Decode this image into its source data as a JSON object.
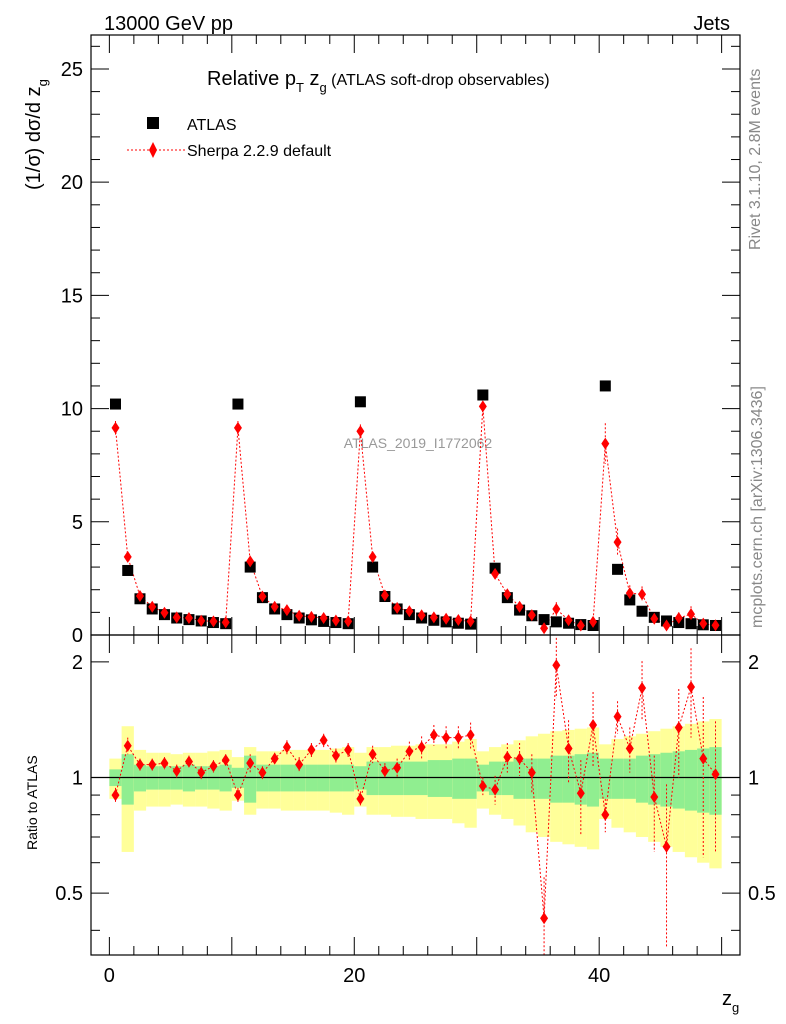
{
  "header": {
    "left": "13000 GeV pp",
    "right": "Jets"
  },
  "side_labels": {
    "rivet": "Rivet 3.1.10,  2.8M events",
    "mcplots": "mcplots.cern.ch [arXiv:1306.3436]"
  },
  "chart_data": [
    {
      "type": "scatter",
      "title": "Relative p_T z_g (ATLAS soft-drop observables)",
      "title_main": "Relative p",
      "title_sub_T": "T",
      "title_z": " z",
      "title_sub_g": "g",
      "title_rest": " (ATLAS soft-drop observables)",
      "ylabel": "(1/σ) dσ/d z_g",
      "ylabel_main": "(1/σ) dσ/d z",
      "ylabel_sub": "g",
      "watermark": "ATLAS_2019_I1772062",
      "xlim": [
        -1.5,
        51.5
      ],
      "ylim": [
        0,
        26.5
      ],
      "y_ticks": [
        0,
        5,
        10,
        15,
        20,
        25
      ],
      "y_tick_labels": [
        "0",
        "5",
        "10",
        "15",
        "20",
        "25"
      ],
      "legend_position": "top-left",
      "series": [
        {
          "name": "ATLAS",
          "color": "#000000",
          "marker": "square",
          "x": [
            0.5,
            1.5,
            2.5,
            3.5,
            4.5,
            5.5,
            6.5,
            7.5,
            8.5,
            9.5,
            10.5,
            11.5,
            12.5,
            13.5,
            14.5,
            15.5,
            16.5,
            17.5,
            18.5,
            19.5,
            20.5,
            21.5,
            22.5,
            23.5,
            24.5,
            25.5,
            26.5,
            27.5,
            28.5,
            29.5,
            30.5,
            31.5,
            32.5,
            33.5,
            34.5,
            35.5,
            36.5,
            37.5,
            38.5,
            39.5,
            40.5,
            41.5,
            42.5,
            43.5,
            44.5,
            45.5,
            46.5,
            47.5,
            48.5,
            49.5
          ],
          "y": [
            10.2,
            2.85,
            1.6,
            1.15,
            0.9,
            0.75,
            0.68,
            0.62,
            0.55,
            0.5,
            10.2,
            3.0,
            1.65,
            1.15,
            0.9,
            0.75,
            0.67,
            0.6,
            0.55,
            0.5,
            10.3,
            3.0,
            1.7,
            1.15,
            0.9,
            0.75,
            0.65,
            0.58,
            0.52,
            0.48,
            10.6,
            2.95,
            1.65,
            1.1,
            0.85,
            0.68,
            0.58,
            0.52,
            0.46,
            0.42,
            11.0,
            2.9,
            1.55,
            1.05,
            0.78,
            0.62,
            0.55,
            0.5,
            0.45,
            0.42
          ]
        },
        {
          "name": "Sherpa 2.2.9 default",
          "color": "#ff0000",
          "marker": "diamond",
          "line": "dotted",
          "x": [
            0.5,
            1.5,
            2.5,
            3.5,
            4.5,
            5.5,
            6.5,
            7.5,
            8.5,
            9.5,
            10.5,
            11.5,
            12.5,
            13.5,
            14.5,
            15.5,
            16.5,
            17.5,
            18.5,
            19.5,
            20.5,
            21.5,
            22.5,
            23.5,
            24.5,
            25.5,
            26.5,
            27.5,
            28.5,
            29.5,
            30.5,
            31.5,
            32.5,
            33.5,
            34.5,
            35.5,
            36.5,
            37.5,
            38.5,
            39.5,
            40.5,
            41.5,
            42.5,
            43.5,
            44.5,
            45.5,
            46.5,
            47.5,
            48.5,
            49.5
          ],
          "y": [
            9.15,
            3.45,
            1.72,
            1.25,
            0.98,
            0.78,
            0.75,
            0.63,
            0.6,
            0.56,
            9.15,
            3.25,
            1.7,
            1.25,
            1.1,
            0.85,
            0.8,
            0.75,
            0.64,
            0.6,
            9.0,
            3.45,
            1.75,
            1.2,
            1.05,
            0.87,
            0.78,
            0.72,
            0.66,
            0.6,
            10.1,
            2.7,
            1.8,
            1.25,
            0.88,
            0.3,
            1.15,
            0.65,
            0.42,
            0.58,
            8.45,
            4.1,
            1.85,
            1.8,
            0.72,
            0.42,
            0.75,
            0.92,
            0.5,
            0.43
          ],
          "yerr": [
            0.3,
            0.15,
            0.08,
            0.06,
            0.05,
            0.04,
            0.04,
            0.04,
            0.04,
            0.04,
            0.3,
            0.15,
            0.08,
            0.06,
            0.06,
            0.05,
            0.05,
            0.05,
            0.05,
            0.05,
            0.3,
            0.15,
            0.1,
            0.08,
            0.07,
            0.07,
            0.07,
            0.07,
            0.07,
            0.07,
            0.4,
            0.25,
            0.18,
            0.15,
            0.12,
            0.1,
            0.3,
            0.2,
            0.15,
            0.2,
            0.9,
            0.6,
            0.35,
            0.35,
            0.25,
            0.2,
            0.25,
            0.35,
            0.2,
            0.2
          ]
        }
      ]
    },
    {
      "type": "scatter",
      "ylabel": "Ratio to ATLAS",
      "xlabel": "z_g",
      "xlabel_main": "z",
      "xlabel_sub": "g",
      "xlim": [
        -1.5,
        51.5
      ],
      "ylim": [
        0.345,
        2.35
      ],
      "y_scale": "log",
      "x_ticks": [
        0,
        20,
        40
      ],
      "x_tick_labels": [
        "0",
        "20",
        "40"
      ],
      "y_ticks": [
        0.5,
        1,
        2
      ],
      "y_tick_labels": [
        "0.5",
        "1",
        "2"
      ],
      "bands": {
        "inner_color": "#90ee90",
        "outer_color": "#ffff99",
        "inner_halfwidth": [
          0.05,
          0.15,
          0.08,
          0.07,
          0.07,
          0.07,
          0.08,
          0.07,
          0.07,
          0.08,
          0.06,
          0.14,
          0.08,
          0.08,
          0.08,
          0.08,
          0.08,
          0.08,
          0.08,
          0.08,
          0.07,
          0.1,
          0.1,
          0.1,
          0.1,
          0.1,
          0.11,
          0.11,
          0.12,
          0.12,
          0.08,
          0.1,
          0.1,
          0.12,
          0.12,
          0.12,
          0.14,
          0.14,
          0.15,
          0.16,
          0.12,
          0.12,
          0.12,
          0.14,
          0.15,
          0.16,
          0.17,
          0.18,
          0.19,
          0.2
        ],
        "outer_halfwidth": [
          0.12,
          0.36,
          0.18,
          0.16,
          0.16,
          0.15,
          0.16,
          0.16,
          0.17,
          0.18,
          0.13,
          0.2,
          0.17,
          0.17,
          0.18,
          0.18,
          0.18,
          0.18,
          0.19,
          0.2,
          0.16,
          0.2,
          0.2,
          0.21,
          0.21,
          0.22,
          0.22,
          0.22,
          0.24,
          0.26,
          0.17,
          0.2,
          0.22,
          0.25,
          0.28,
          0.3,
          0.32,
          0.33,
          0.34,
          0.35,
          0.22,
          0.26,
          0.28,
          0.3,
          0.32,
          0.34,
          0.36,
          0.38,
          0.4,
          0.42
        ]
      },
      "series": [
        {
          "name": "Sherpa 2.2.9 default",
          "color": "#ff0000",
          "marker": "diamond",
          "line": "dotted",
          "x": [
            0.5,
            1.5,
            2.5,
            3.5,
            4.5,
            5.5,
            6.5,
            7.5,
            8.5,
            9.5,
            10.5,
            11.5,
            12.5,
            13.5,
            14.5,
            15.5,
            16.5,
            17.5,
            18.5,
            19.5,
            20.5,
            21.5,
            22.5,
            23.5,
            24.5,
            25.5,
            26.5,
            27.5,
            28.5,
            29.5,
            30.5,
            31.5,
            32.5,
            33.5,
            34.5,
            35.5,
            36.5,
            37.5,
            38.5,
            39.5,
            40.5,
            41.5,
            42.5,
            43.5,
            44.5,
            45.5,
            46.5,
            47.5,
            48.5,
            49.5
          ],
          "y": [
            0.9,
            1.21,
            1.08,
            1.08,
            1.09,
            1.04,
            1.1,
            1.03,
            1.07,
            1.11,
            0.9,
            1.09,
            1.03,
            1.12,
            1.2,
            1.08,
            1.18,
            1.25,
            1.14,
            1.18,
            0.88,
            1.15,
            1.04,
            1.06,
            1.17,
            1.2,
            1.29,
            1.27,
            1.27,
            1.29,
            0.95,
            0.93,
            1.13,
            1.12,
            1.03,
            0.43,
            1.96,
            1.19,
            0.91,
            1.37,
            0.8,
            1.44,
            1.19,
            1.71,
            0.89,
            0.66,
            1.35,
            1.72,
            1.12,
            1.02
          ],
          "yerr": [
            0.04,
            0.06,
            0.04,
            0.04,
            0.04,
            0.04,
            0.04,
            0.04,
            0.04,
            0.04,
            0.04,
            0.06,
            0.04,
            0.04,
            0.05,
            0.05,
            0.05,
            0.05,
            0.05,
            0.05,
            0.04,
            0.06,
            0.05,
            0.06,
            0.07,
            0.08,
            0.08,
            0.09,
            0.09,
            0.1,
            0.05,
            0.08,
            0.1,
            0.11,
            0.12,
            0.12,
            0.35,
            0.22,
            0.2,
            0.3,
            0.08,
            0.14,
            0.16,
            0.3,
            0.25,
            0.3,
            0.35,
            0.45,
            0.5,
            0.38
          ]
        }
      ]
    }
  ]
}
